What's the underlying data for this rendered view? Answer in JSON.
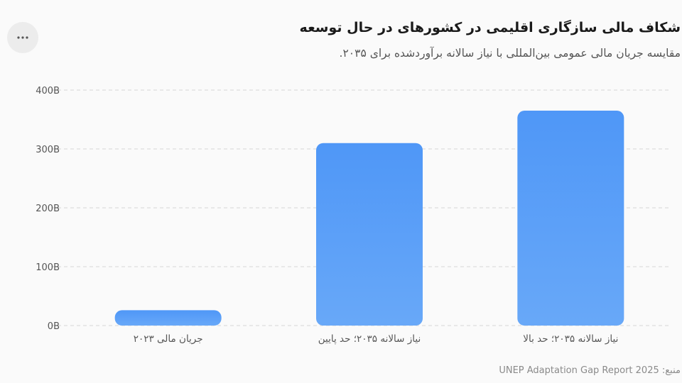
{
  "header": {
    "title": "شکاف مالی سازگاری اقلیمی در کشورهای در حال توسعه",
    "subtitle": "مقایسه جریان مالی عمومی بین‌المللی با نیاز سالانه برآوردشده برای ۲۰۳۵."
  },
  "menu": {
    "icon": "more-horizontal-icon"
  },
  "footer": {
    "source": "منبع: UNEP Adaptation Gap Report 2025"
  },
  "colors": {
    "bar_top": "#4f97f7",
    "bar_bottom": "#68a8f8",
    "grid": "#e2e2e2",
    "tick_text": "#555555"
  },
  "chart_data": {
    "type": "bar",
    "categories": [
      "جریان مالی ۲۰۲۳",
      "نیاز سالانه ۲۰۳۵؛ حد پایین",
      "نیاز سالانه ۲۰۳۵؛ حد بالا"
    ],
    "values": [
      26,
      310,
      365
    ],
    "yticks": [
      "0B",
      "100B",
      "200B",
      "300B",
      "400B"
    ],
    "ytick_values": [
      0,
      100,
      200,
      300,
      400
    ],
    "ylim": [
      0,
      400
    ],
    "grid": true,
    "legend": "none"
  }
}
